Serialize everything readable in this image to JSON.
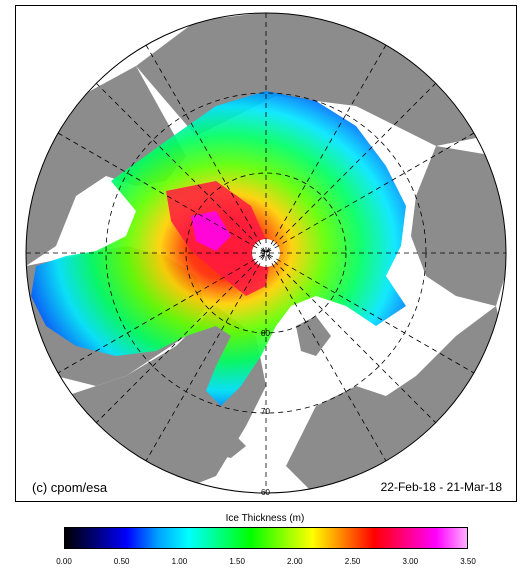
{
  "map": {
    "credit": "(c) cpom/esa",
    "date_range": "22-Feb-18 - 21-Mar-18",
    "latitude_labels": [
      "90",
      "80",
      "70",
      "60"
    ],
    "colors": {
      "land": "#8c8c8c",
      "ocean": "#ffffff",
      "grid": "#000000",
      "coast_fill": "#d9d9d9"
    }
  },
  "legend": {
    "title": "Ice Thickness (m)",
    "min": 0.0,
    "max": 3.5,
    "ticks": [
      "0.00",
      "0.50",
      "1.00",
      "1.50",
      "2.00",
      "2.50",
      "3.00",
      "3.50"
    ],
    "gradient": [
      "#000000",
      "#00007a",
      "#0000ff",
      "#00a0ff",
      "#00ffff",
      "#00ff80",
      "#00ff00",
      "#80ff00",
      "#ffff00",
      "#ff8000",
      "#ff0000",
      "#ff0080",
      "#ff00ff",
      "#ffb0ff"
    ]
  }
}
